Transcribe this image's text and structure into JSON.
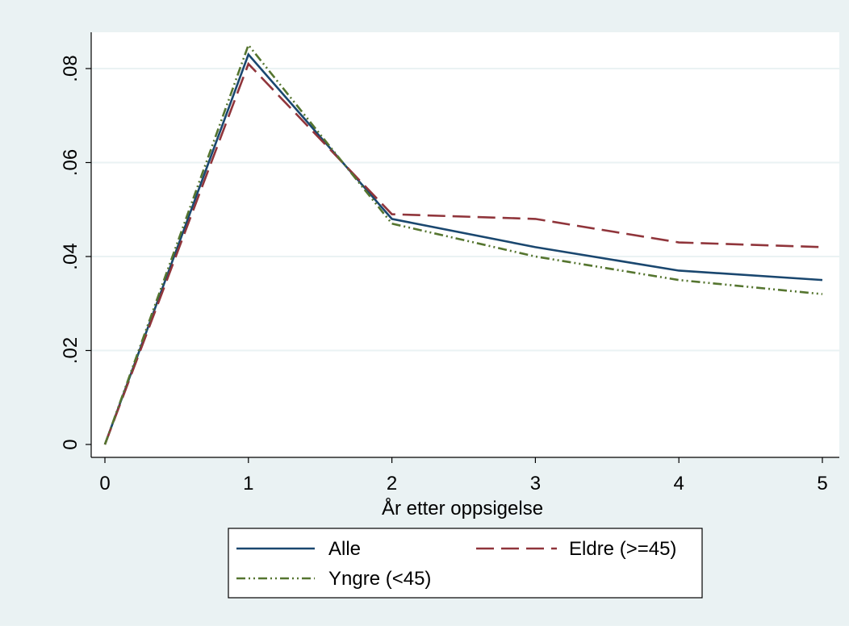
{
  "chart_data": {
    "type": "line",
    "xlabel": "År etter oppsigelse",
    "ylabel": "",
    "x": [
      0,
      1,
      2,
      3,
      4,
      5
    ],
    "xlim": [
      0,
      5
    ],
    "ylim": [
      0,
      0.08
    ],
    "xticks": [
      "0",
      "1",
      "2",
      "3",
      "4",
      "5"
    ],
    "yticks": [
      "0",
      ".02",
      ".04",
      ".06",
      ".08"
    ],
    "grid": true,
    "legend_position": "bottom",
    "series": [
      {
        "name": "Alle",
        "values": [
          0,
          0.083,
          0.048,
          0.042,
          0.037,
          0.035
        ],
        "color": "#1a476f",
        "style": "solid"
      },
      {
        "name": "Eldre (>=45)",
        "values": [
          0,
          0.081,
          0.049,
          0.048,
          0.043,
          0.042
        ],
        "color": "#90353b",
        "style": "dash"
      },
      {
        "name": "Yngre (<45)",
        "values": [
          0,
          0.085,
          0.047,
          0.04,
          0.035,
          0.032
        ],
        "color": "#55752f",
        "style": "dashdotdot"
      }
    ],
    "colors": {
      "background": "#eaf2f3",
      "plot_area": "#ffffff",
      "grid": "#eaf2f3"
    }
  }
}
